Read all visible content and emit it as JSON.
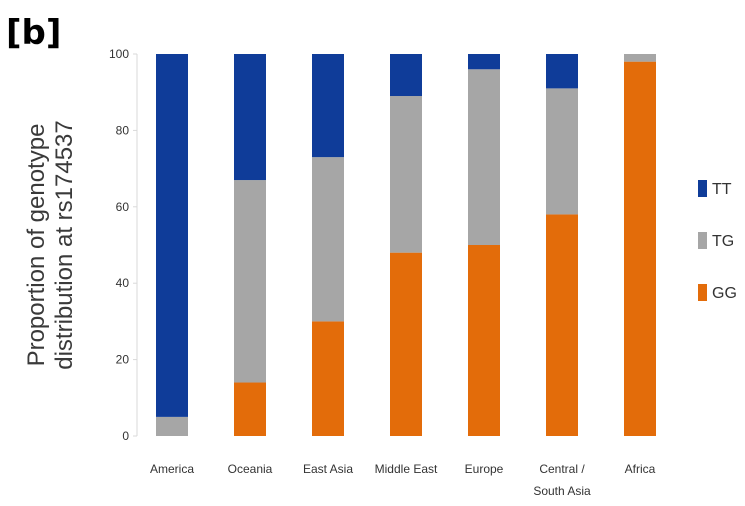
{
  "panel_label": "[b]",
  "chart_data": {
    "type": "bar",
    "stacked": true,
    "ylabel": "Proportion of genotype\ndistribution at rs174537",
    "xlabel": "",
    "ylim": [
      0,
      100
    ],
    "yticks": [
      0,
      20,
      40,
      60,
      80,
      100
    ],
    "grid": false,
    "legend_position": "right",
    "categories": [
      "America",
      "Oceania",
      "East Asia",
      "Middle East",
      "Europe",
      "Central / South Asia",
      "Africa"
    ],
    "category_lines": [
      [
        "America"
      ],
      [
        "Oceania"
      ],
      [
        "East Asia"
      ],
      [
        "Middle East"
      ],
      [
        "Europe"
      ],
      [
        "Central /",
        "South Asia"
      ],
      [
        "Africa"
      ]
    ],
    "series": [
      {
        "name": "GG",
        "color": "#e36c0a",
        "values": [
          0,
          14,
          30,
          48,
          50,
          58,
          98
        ]
      },
      {
        "name": "TG",
        "color": "#a6a6a6",
        "values": [
          5,
          53,
          43,
          41,
          46,
          33,
          2
        ]
      },
      {
        "name": "TT",
        "color": "#0f3c99",
        "values": [
          95,
          33,
          27,
          11,
          4,
          9,
          0
        ]
      }
    ],
    "legend_order": [
      "TT",
      "TG",
      "GG"
    ]
  }
}
